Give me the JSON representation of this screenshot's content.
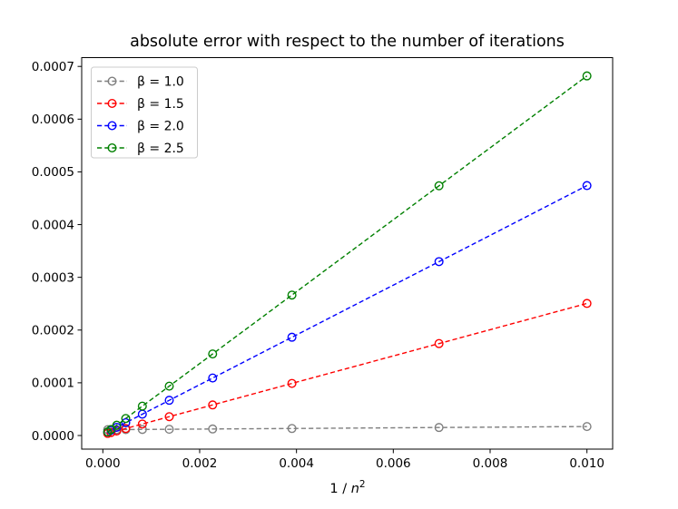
{
  "figure": {
    "background_color": "#ffffff",
    "frame_color": "#000000"
  },
  "chart_data": {
    "type": "line",
    "title": "absolute error with respect to the number of iterations",
    "xlabel": "1 / n^2",
    "xlabel_parts": {
      "prefix": "1 / ",
      "variable": "n",
      "exponent": "2"
    },
    "ylabel": "",
    "grid": false,
    "legend_position": "upper left",
    "xlim": [
      -0.000437,
      0.010531
    ],
    "ylim": [
      -2.58e-05,
      0.0007167
    ],
    "x_ticks": {
      "values": [
        0,
        0.002,
        0.004,
        0.006,
        0.008,
        0.01
      ],
      "labels": [
        "0.000",
        "0.002",
        "0.004",
        "0.006",
        "0.008",
        "0.010"
      ]
    },
    "y_ticks": {
      "values": [
        0,
        0.0001,
        0.0002,
        0.0003,
        0.0004,
        0.0005,
        0.0006,
        0.0007
      ],
      "labels": [
        "0.0000",
        "0.0001",
        "0.0002",
        "0.0003",
        "0.0004",
        "0.0005",
        "0.0006",
        "0.0007"
      ]
    },
    "x": [
      0.0001,
      0.000169,
      0.000287,
      0.000473,
      0.000816,
      0.001372,
      0.002268,
      0.003906,
      0.006944,
      0.01
    ],
    "series": [
      {
        "name": "β = 1.0",
        "color": "#7f7f7f",
        "linestyle": "dashed",
        "marker": "circle-open",
        "values": [
          1.11e-05,
          1.11e-05,
          1.12e-05,
          1.13e-05,
          1.15e-05,
          1.18e-05,
          1.24e-05,
          1.33e-05,
          1.52e-05,
          1.7e-05
        ]
      },
      {
        "name": "β = 1.5",
        "color": "#ff0000",
        "linestyle": "dashed",
        "marker": "circle-open",
        "values": [
          4e-06,
          5.7e-06,
          8.6e-06,
          1.33e-05,
          2.18e-05,
          3.57e-05,
          5.8e-05,
          9.88e-05,
          0.0001744,
          0.0002505
        ]
      },
      {
        "name": "β = 2.0",
        "color": "#0000ff",
        "linestyle": "dashed",
        "marker": "circle-open",
        "values": [
          6.7e-06,
          1e-05,
          1.56e-05,
          2.43e-05,
          4.05e-05,
          6.68e-05,
          0.0001091,
          0.0001864,
          0.0003298,
          0.000474
        ]
      },
      {
        "name": "β = 2.5",
        "color": "#008000",
        "linestyle": "dashed",
        "marker": "circle-open",
        "values": [
          6.8e-06,
          1.15e-05,
          1.96e-05,
          3.23e-05,
          5.57e-05,
          9.36e-05,
          0.0001547,
          0.0002664,
          0.0004736,
          0.000682
        ]
      }
    ],
    "legend_border_color": "#cccccc"
  }
}
